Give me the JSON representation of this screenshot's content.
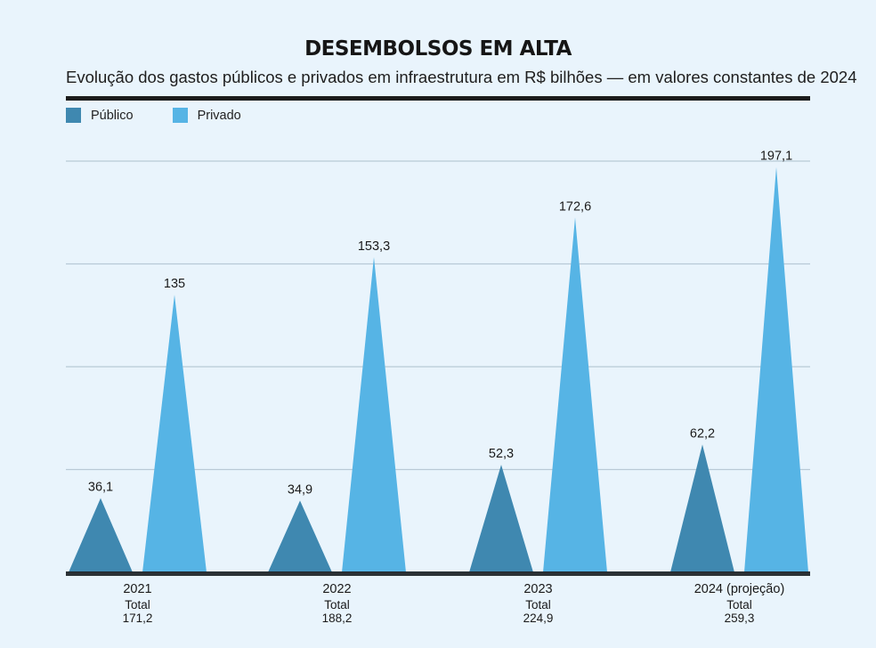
{
  "colors": {
    "background": "#e9f4fc",
    "publico": "#3f88b0",
    "privado": "#56b4e5",
    "grid": "#b9c9d6",
    "axis": "#1a1f24"
  },
  "chart_data": {
    "type": "bar",
    "mark_shape": "triangle",
    "title": "DESEMBOLSOS EM ALTA",
    "subtitle": "Evolução dos gastos públicos e privados em infraestrutura em R$ bilhões — em valores constantes de 2024",
    "xlabel": "",
    "ylabel": "",
    "ylim": [
      0,
      200
    ],
    "gridlines": [
      50,
      100,
      150,
      200
    ],
    "grid": true,
    "legend_position": "top-left",
    "categories": [
      "2021",
      "2022",
      "2023",
      "2024 (projeção)"
    ],
    "series": [
      {
        "name": "Público",
        "color_key": "publico",
        "values": [
          36.1,
          34.9,
          52.3,
          62.2
        ],
        "labels": [
          "36,1",
          "34,9",
          "52,3",
          "62,2"
        ]
      },
      {
        "name": "Privado",
        "color_key": "privado",
        "values": [
          135,
          153.3,
          172.6,
          197.1
        ],
        "labels": [
          "135",
          "153,3",
          "172,6",
          "197,1"
        ]
      }
    ],
    "totals_label": "Total",
    "totals": [
      171.2,
      188.2,
      224.9,
      259.3
    ],
    "totals_text": [
      "171,2",
      "188,2",
      "224,9",
      "259,3"
    ]
  }
}
